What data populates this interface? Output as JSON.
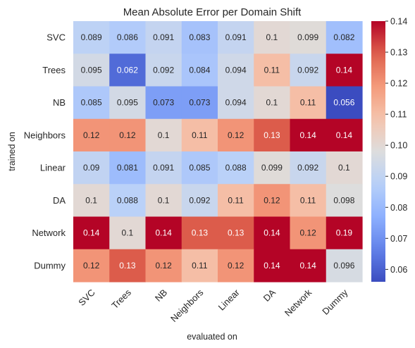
{
  "chart_data": {
    "type": "heatmap",
    "title": "Mean Absolute Error per Domain Shift",
    "xlabel": "evaluated on",
    "ylabel": "trained on",
    "x_categories": [
      "SVC",
      "Trees",
      "NB",
      "Neighbors",
      "Linear",
      "DA",
      "Network",
      "Dummy"
    ],
    "y_categories": [
      "SVC",
      "Trees",
      "NB",
      "Neighbors",
      "Linear",
      "DA",
      "Network",
      "Dummy"
    ],
    "values": [
      [
        0.089,
        0.086,
        0.091,
        0.083,
        0.091,
        0.1,
        0.099,
        0.082
      ],
      [
        0.095,
        0.062,
        0.092,
        0.084,
        0.094,
        0.11,
        0.092,
        0.14
      ],
      [
        0.085,
        0.095,
        0.073,
        0.073,
        0.094,
        0.1,
        0.11,
        0.056
      ],
      [
        0.12,
        0.12,
        0.1,
        0.11,
        0.12,
        0.13,
        0.14,
        0.14
      ],
      [
        0.09,
        0.081,
        0.091,
        0.085,
        0.088,
        0.099,
        0.092,
        0.1
      ],
      [
        0.1,
        0.088,
        0.1,
        0.092,
        0.11,
        0.12,
        0.11,
        0.098
      ],
      [
        0.14,
        0.1,
        0.14,
        0.13,
        0.13,
        0.14,
        0.12,
        0.19
      ],
      [
        0.12,
        0.13,
        0.12,
        0.11,
        0.12,
        0.14,
        0.14,
        0.096
      ]
    ],
    "labels": [
      [
        "0.089",
        "0.086",
        "0.091",
        "0.083",
        "0.091",
        "0.1",
        "0.099",
        "0.082"
      ],
      [
        "0.095",
        "0.062",
        "0.092",
        "0.084",
        "0.094",
        "0.11",
        "0.092",
        "0.14"
      ],
      [
        "0.085",
        "0.095",
        "0.073",
        "0.073",
        "0.094",
        "0.1",
        "0.11",
        "0.056"
      ],
      [
        "0.12",
        "0.12",
        "0.1",
        "0.11",
        "0.12",
        "0.13",
        "0.14",
        "0.14"
      ],
      [
        "0.09",
        "0.081",
        "0.091",
        "0.085",
        "0.088",
        "0.099",
        "0.092",
        "0.1"
      ],
      [
        "0.1",
        "0.088",
        "0.1",
        "0.092",
        "0.11",
        "0.12",
        "0.11",
        "0.098"
      ],
      [
        "0.14",
        "0.1",
        "0.14",
        "0.13",
        "0.13",
        "0.14",
        "0.12",
        "0.19"
      ],
      [
        "0.12",
        "0.13",
        "0.12",
        "0.11",
        "0.12",
        "0.14",
        "0.14",
        "0.096"
      ]
    ],
    "colormap": "coolwarm",
    "color_range": [
      0.056,
      0.14
    ],
    "colorbar_ticks": [
      "0.06",
      "0.07",
      "0.08",
      "0.09",
      "0.10",
      "0.11",
      "0.12",
      "0.13",
      "0.14"
    ],
    "colorbar_tick_values": [
      0.06,
      0.07,
      0.08,
      0.09,
      0.1,
      0.11,
      0.12,
      0.13,
      0.14
    ],
    "legend": "colorbar-right"
  }
}
